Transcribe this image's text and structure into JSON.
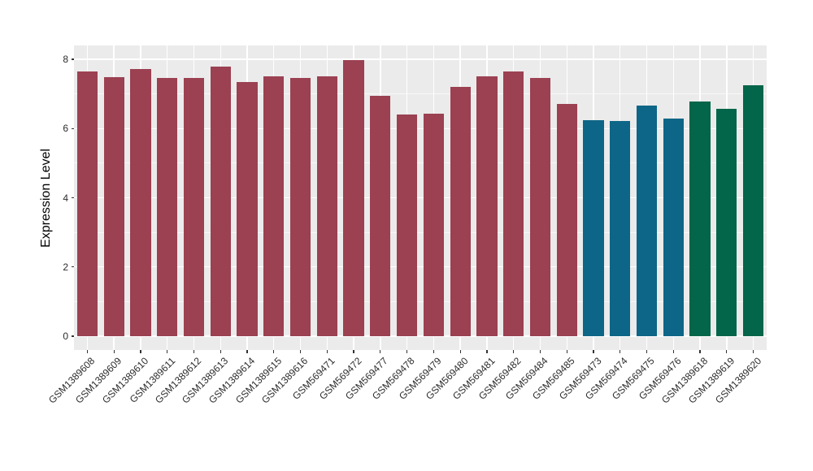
{
  "figure": {
    "background": "#FFFFFF",
    "panel_background": "#EBEBEB",
    "grid_major_color": "#FFFFFF",
    "tick_color": "#333333",
    "text_color": "#2B2B2B"
  },
  "chart_data": {
    "type": "bar",
    "title": "",
    "xlabel": "",
    "ylabel": "Expression Level",
    "ylim": [
      -0.4,
      8.4
    ],
    "yticks": [
      0,
      2,
      4,
      6,
      8
    ],
    "minor_yticks": [
      1,
      3,
      5,
      7
    ],
    "grid": true,
    "legend": "none",
    "categories": [
      "GSM1389608",
      "GSM1389609",
      "GSM1389610",
      "GSM1389611",
      "GSM1389612",
      "GSM1389613",
      "GSM1389614",
      "GSM1389615",
      "GSM1389616",
      "GSM569471",
      "GSM569472",
      "GSM569477",
      "GSM569478",
      "GSM569479",
      "GSM569480",
      "GSM569481",
      "GSM569482",
      "GSM569484",
      "GSM569485",
      "GSM569473",
      "GSM569474",
      "GSM569475",
      "GSM569476",
      "GSM1389618",
      "GSM1389619",
      "GSM1389620"
    ],
    "values": [
      7.66,
      7.48,
      7.72,
      7.45,
      7.47,
      7.8,
      7.35,
      7.5,
      7.47,
      7.5,
      7.98,
      6.95,
      6.4,
      6.44,
      7.2,
      7.5,
      7.65,
      7.45,
      6.7,
      6.24,
      6.21,
      6.66,
      6.28,
      6.77,
      6.58,
      7.25
    ],
    "bar_colors": [
      "#9B4152",
      "#9B4152",
      "#9B4152",
      "#9B4152",
      "#9B4152",
      "#9B4152",
      "#9B4152",
      "#9B4152",
      "#9B4152",
      "#9B4152",
      "#9B4152",
      "#9B4152",
      "#9B4152",
      "#9B4152",
      "#9B4152",
      "#9B4152",
      "#9B4152",
      "#9B4152",
      "#9B4152",
      "#0D6687",
      "#0D6687",
      "#0D6687",
      "#0D6687",
      "#036549",
      "#036549",
      "#036549"
    ]
  }
}
